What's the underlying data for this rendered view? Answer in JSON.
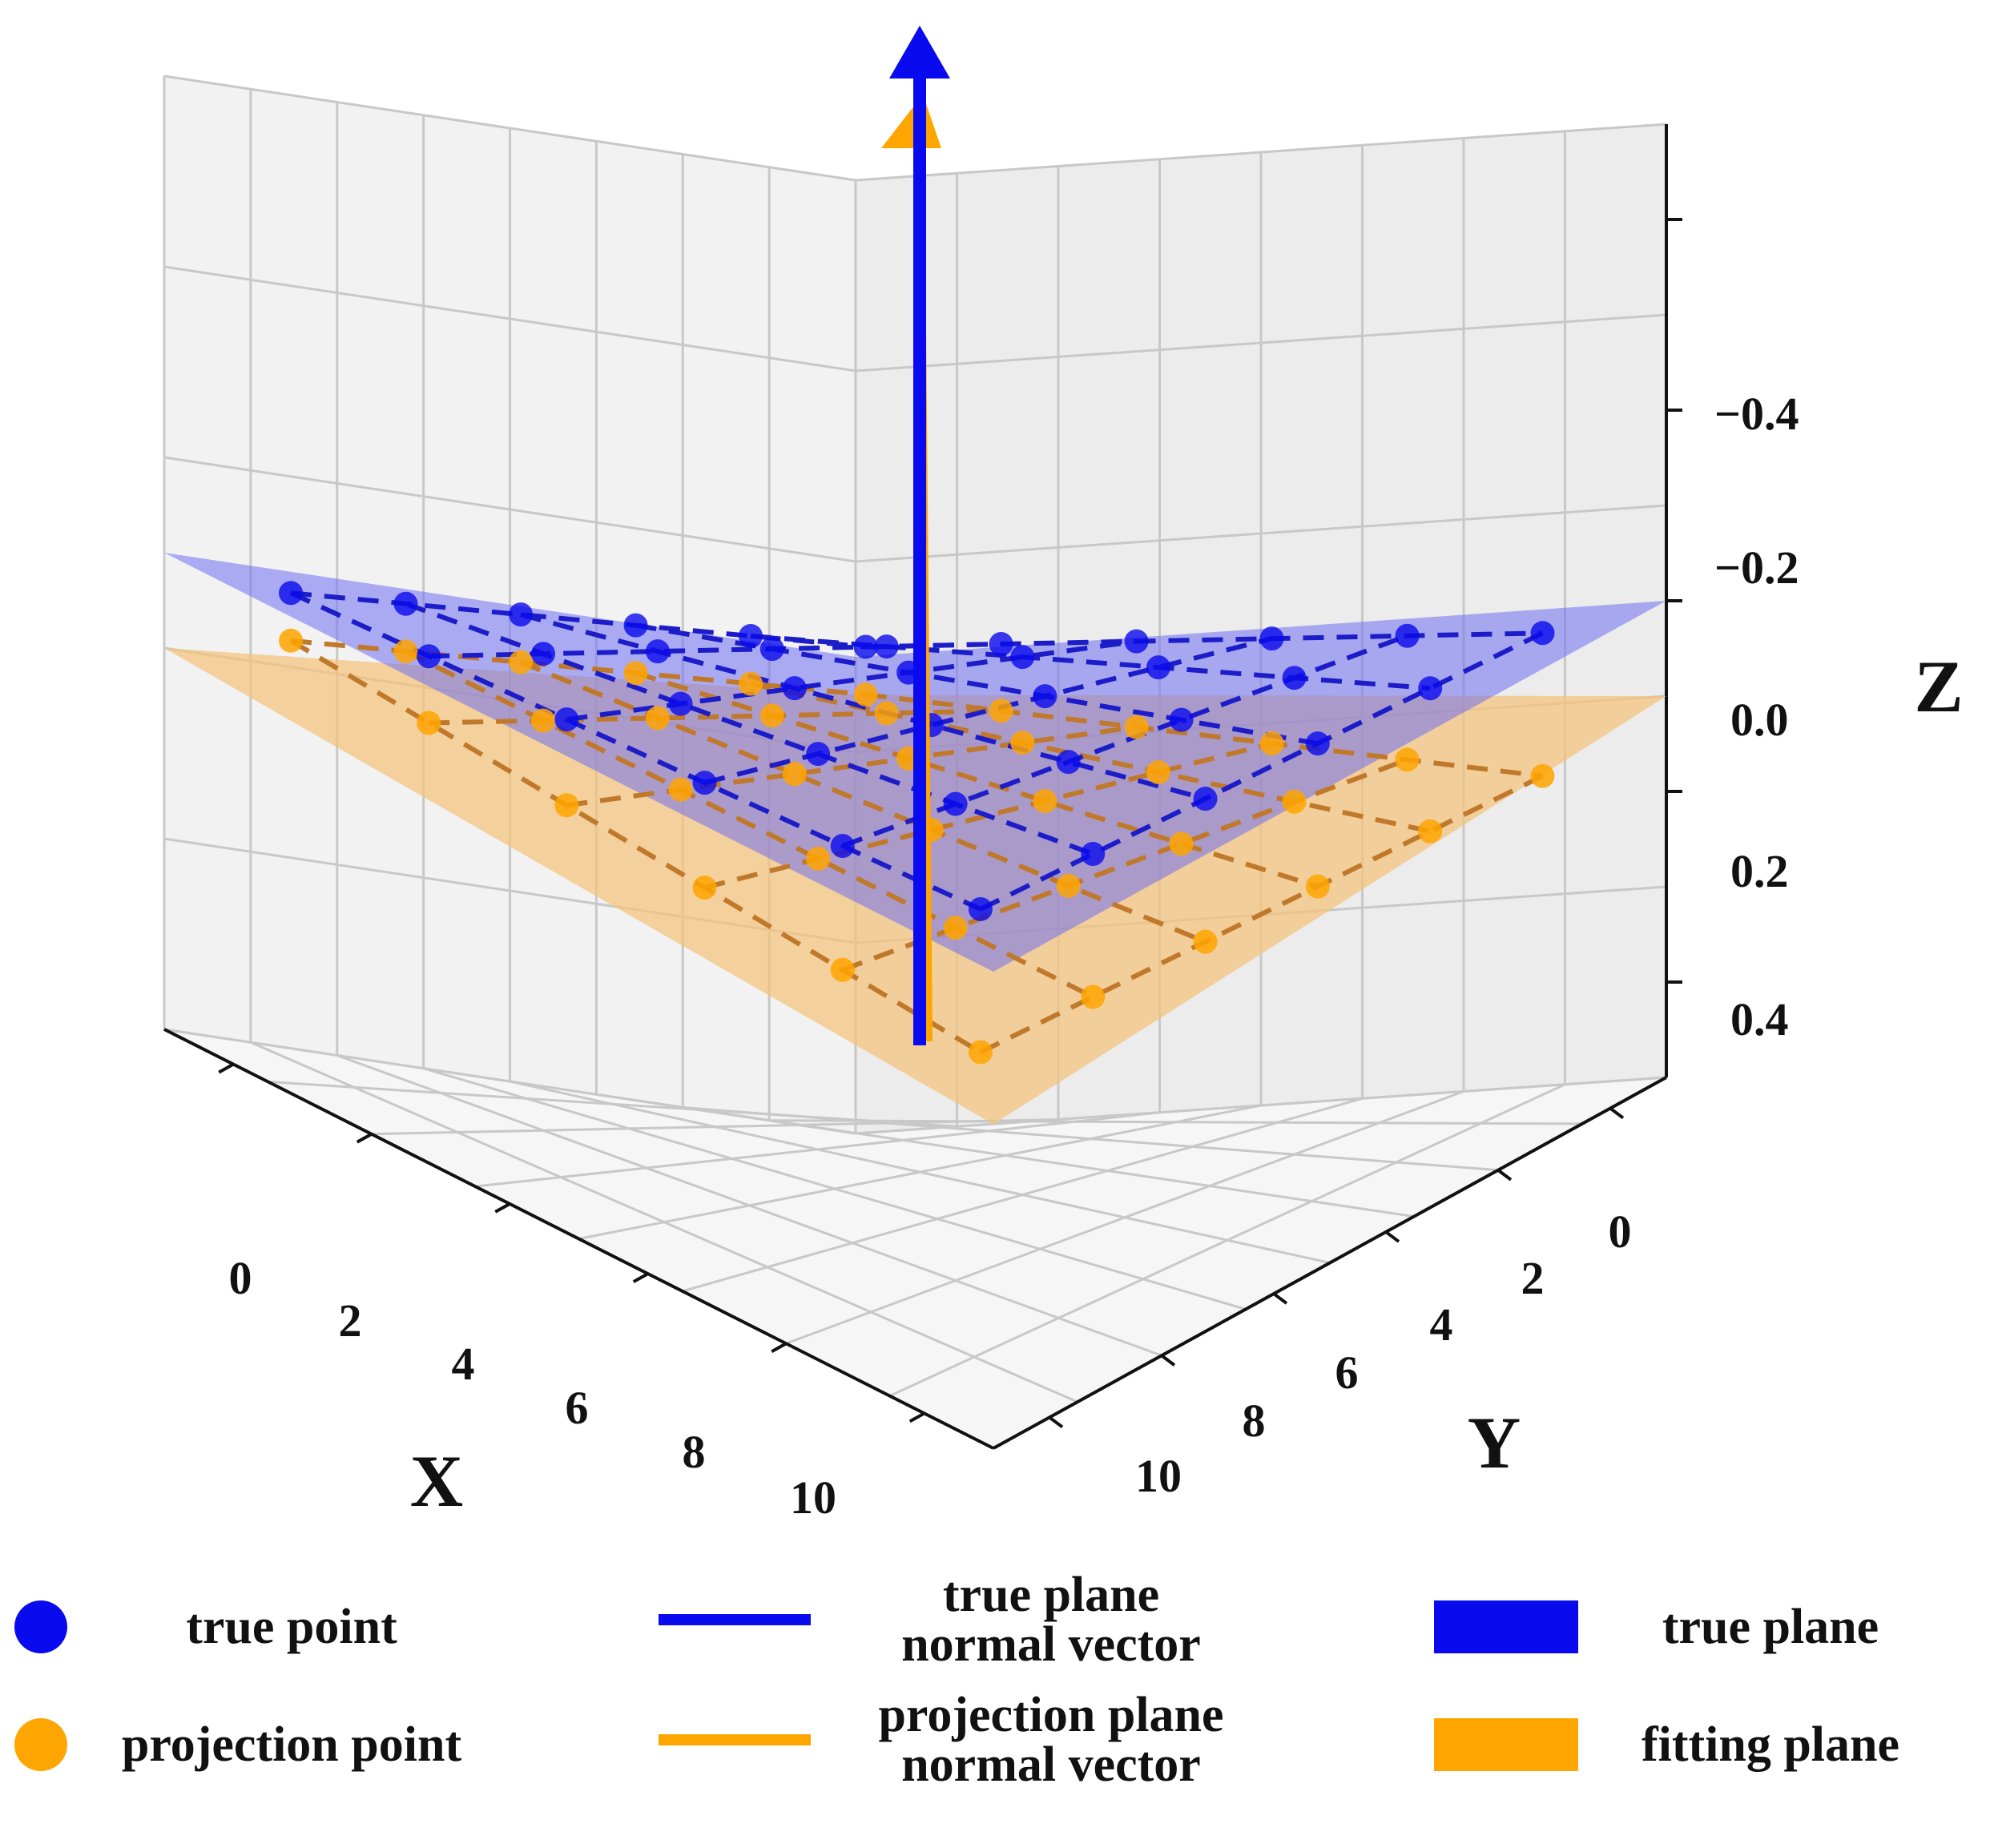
{
  "chart_data": {
    "type": "scatter",
    "projection": "3d",
    "xlabel": "X",
    "ylabel": "Y",
    "zlabel": "Z",
    "x_ticks": [
      "0",
      "2",
      "4",
      "6",
      "8",
      "10"
    ],
    "y_ticks": [
      "0",
      "2",
      "4",
      "6",
      "8",
      "10"
    ],
    "z_ticks": [
      "−0.4",
      "−0.2",
      "0.0",
      "0.2",
      "0.4"
    ],
    "xlim": [
      -1,
      11
    ],
    "ylim": [
      -1,
      11
    ],
    "zlim": [
      -0.5,
      0.5
    ],
    "z_inverted": true,
    "grid": true,
    "legend_position": "bottom",
    "grid_x": [
      0,
      2,
      4,
      6,
      8,
      10
    ],
    "grid_y": [
      0,
      2,
      4,
      6,
      8,
      10
    ],
    "true_plane_z": 0.0,
    "fitting_plane_z": 0.1,
    "series": [
      {
        "name": "true point",
        "kind": "points",
        "z": 0.0
      },
      {
        "name": "projection point",
        "kind": "points",
        "z": 0.1
      },
      {
        "name": "true plane\nnormal vector",
        "kind": "vector",
        "origin": [
          10,
          0,
          0.1
        ],
        "direction": [
          0,
          0,
          -1
        ]
      },
      {
        "name": "projection plane\nnormal vector",
        "kind": "vector",
        "origin": [
          10,
          0.1,
          0.1
        ],
        "direction": [
          0,
          0,
          -1
        ]
      },
      {
        "name": "true plane",
        "kind": "plane"
      },
      {
        "name": "fitting plane",
        "kind": "plane"
      }
    ],
    "colors": {
      "true": "#0a0aee",
      "projection": "#ffa500",
      "true_plane": "#6f6ff2",
      "fitting_plane": "#f2c27a",
      "grid": "#c8c8c8",
      "pane": "#f2f2f2"
    }
  },
  "legend": {
    "items": [
      {
        "marker": "dot",
        "color": "#0a0aee",
        "label": "true point"
      },
      {
        "marker": "dot",
        "color": "#ffa500",
        "label": "projection point"
      },
      {
        "marker": "line",
        "color": "#0a0aee",
        "label_line1": "true plane",
        "label_line2": "normal vector"
      },
      {
        "marker": "line",
        "color": "#ffa500",
        "label_line1": "projection plane",
        "label_line2": "normal vector"
      },
      {
        "marker": "rect",
        "color": "#0a0aee",
        "label": "true plane"
      },
      {
        "marker": "rect",
        "color": "#ffa500",
        "label": "fitting plane"
      }
    ]
  }
}
